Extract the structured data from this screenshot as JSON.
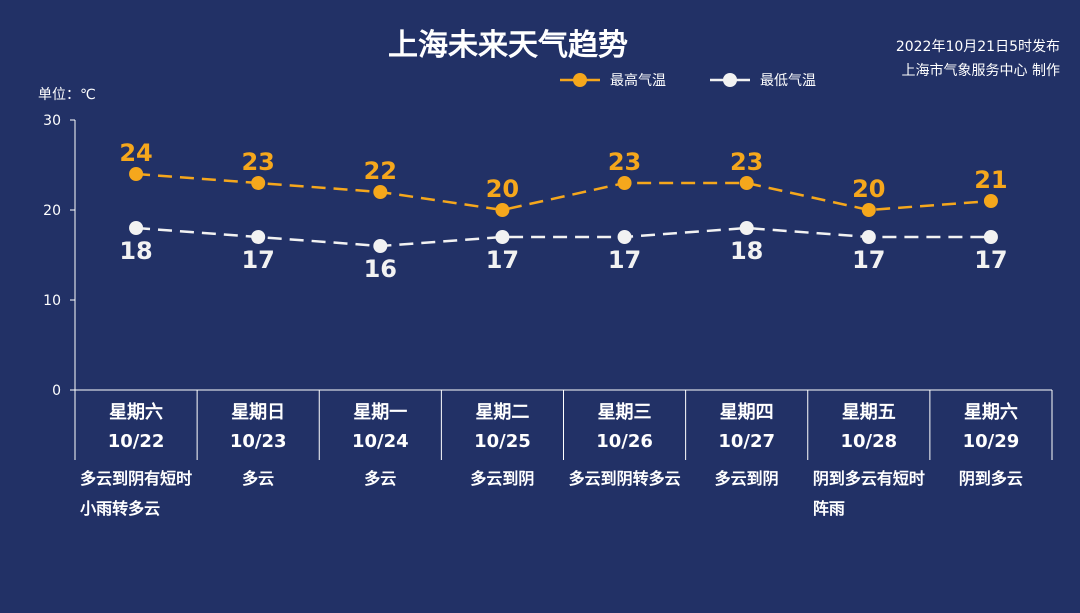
{
  "title": "上海未来天气趋势",
  "publish": {
    "time": "2022年10月21日5时发布",
    "source": "上海市气象服务中心 制作"
  },
  "unit_label": "单位：℃",
  "colors": {
    "background": "#223166",
    "high": "#F5A71C",
    "low": "#F2F2F2",
    "axis": "#FFFFFF"
  },
  "chart_data": {
    "type": "line",
    "title": "上海未来天气趋势",
    "ylabel": "单位：℃",
    "ylim": [
      0,
      30
    ],
    "yticks": [
      0,
      10,
      20,
      30
    ],
    "grid": false,
    "legend": "top-right",
    "line_style": "dashed",
    "categories": [
      "星期六 10/22",
      "星期日 10/23",
      "星期一 10/24",
      "星期二 10/25",
      "星期三 10/26",
      "星期四 10/27",
      "星期五 10/28",
      "星期六 10/29"
    ],
    "series": [
      {
        "name": "最高气温",
        "values": [
          24,
          23,
          22,
          20,
          23,
          23,
          20,
          21
        ]
      },
      {
        "name": "最低气温",
        "values": [
          18,
          17,
          16,
          17,
          17,
          18,
          17,
          17
        ]
      }
    ]
  },
  "days": [
    {
      "weekday": "星期六",
      "date": "10/22",
      "weather": "多云到阴有短时小雨转多云"
    },
    {
      "weekday": "星期日",
      "date": "10/23",
      "weather": "多云"
    },
    {
      "weekday": "星期一",
      "date": "10/24",
      "weather": "多云"
    },
    {
      "weekday": "星期二",
      "date": "10/25",
      "weather": "多云到阴"
    },
    {
      "weekday": "星期三",
      "date": "10/26",
      "weather": "多云到阴转多云"
    },
    {
      "weekday": "星期四",
      "date": "10/27",
      "weather": "多云到阴"
    },
    {
      "weekday": "星期五",
      "date": "10/28",
      "weather": "阴到多云有短时阵雨"
    },
    {
      "weekday": "星期六",
      "date": "10/29",
      "weather": "阴到多云"
    }
  ]
}
